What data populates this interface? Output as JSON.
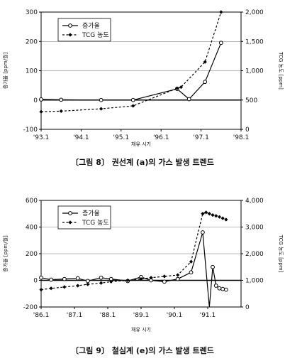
{
  "chart_data": [
    {
      "type": "line",
      "caption": "〔그림 8〕 권선계 (a)의 가스 발생 트렌드",
      "xlabel": "채유 시기",
      "ylabel_left": "증가율 [ppm/월]",
      "ylabel_right": "TCG 농도 [ppm]",
      "x_ticks": [
        "'93.1",
        "'94.1",
        "'95.1",
        "'96.1",
        "'97.1",
        "'98.1"
      ],
      "y_left_ticks": [
        -100,
        0,
        100,
        200,
        300
      ],
      "y_right_ticks": [
        "0",
        "500",
        "1,000",
        "1,500",
        "2,000"
      ],
      "xlim": [
        1993.0,
        1998.0
      ],
      "ylim_left": [
        -100,
        300
      ],
      "ylim_right": [
        0,
        2000
      ],
      "legend": [
        "증가율",
        "TCG 농도"
      ],
      "legend_position": "top-left",
      "series": [
        {
          "name": "증가율",
          "axis": "left",
          "style": "solid-open-circle",
          "x": [
            1993.0,
            1993.5,
            1994.5,
            1995.3,
            1996.4,
            1996.7,
            1997.1,
            1997.5
          ],
          "y": [
            2,
            1,
            0,
            0,
            38,
            3,
            62,
            195
          ]
        },
        {
          "name": "TCG 농도",
          "axis": "right",
          "style": "dashed-filled-diamond",
          "x": [
            1993.0,
            1993.5,
            1994.5,
            1995.3,
            1996.4,
            1996.5,
            1997.1,
            1997.5
          ],
          "y": [
            300,
            310,
            350,
            400,
            700,
            720,
            1150,
            2000
          ]
        }
      ]
    },
    {
      "type": "line",
      "caption": "〔그림 9〕 철심계 (e)의 가스 발생 트렌드",
      "xlabel": "채유 시기",
      "ylabel_left": "증가율 [ppm/월]",
      "ylabel_right": "TCG 농도 [ppm]",
      "x_ticks": [
        "'86.1",
        "'87.1",
        "'88.1",
        "'89.1",
        "'90.1",
        "'91.1"
      ],
      "y_left_ticks": [
        -200,
        0,
        200,
        400,
        600
      ],
      "y_right_ticks": [
        "0",
        "1,000",
        "2,000",
        "3,000",
        "4,000"
      ],
      "xlim": [
        1986.0,
        1992.0
      ],
      "ylim_left": [
        -200,
        600
      ],
      "ylim_right": [
        0,
        4000
      ],
      "legend": [
        "증가율",
        "TCG 농도"
      ],
      "legend_position": "top-left",
      "series": [
        {
          "name": "증가율",
          "axis": "left",
          "style": "solid-open-circle",
          "x": [
            1986.0,
            1986.3,
            1986.7,
            1987.1,
            1987.4,
            1987.8,
            1988.1,
            1988.6,
            1989.0,
            1989.3,
            1989.7,
            1990.1,
            1990.5,
            1990.85,
            1991.05,
            1991.15,
            1991.25,
            1991.35,
            1991.45,
            1991.55
          ],
          "y": [
            20,
            5,
            10,
            15,
            -5,
            20,
            10,
            -5,
            25,
            0,
            -10,
            10,
            60,
            360,
            -200,
            100,
            -40,
            -60,
            -65,
            -70
          ],
          "markers": [
            true,
            true,
            true,
            true,
            true,
            true,
            true,
            true,
            true,
            true,
            true,
            true,
            true,
            true,
            false,
            true,
            true,
            true,
            true,
            true
          ]
        },
        {
          "name": "TCG 농도",
          "axis": "right",
          "style": "dashed-filled-diamond",
          "x": [
            1986.0,
            1986.3,
            1986.7,
            1987.1,
            1987.4,
            1987.8,
            1988.1,
            1988.6,
            1989.0,
            1989.3,
            1989.7,
            1990.1,
            1990.5,
            1990.85,
            1990.95,
            1991.05,
            1991.15,
            1991.25,
            1991.35,
            1991.45,
            1991.55
          ],
          "y": [
            650,
            700,
            750,
            800,
            850,
            900,
            950,
            1000,
            1050,
            1100,
            1150,
            1200,
            1700,
            3500,
            3550,
            3500,
            3450,
            3420,
            3380,
            3330,
            3280
          ]
        }
      ]
    }
  ]
}
